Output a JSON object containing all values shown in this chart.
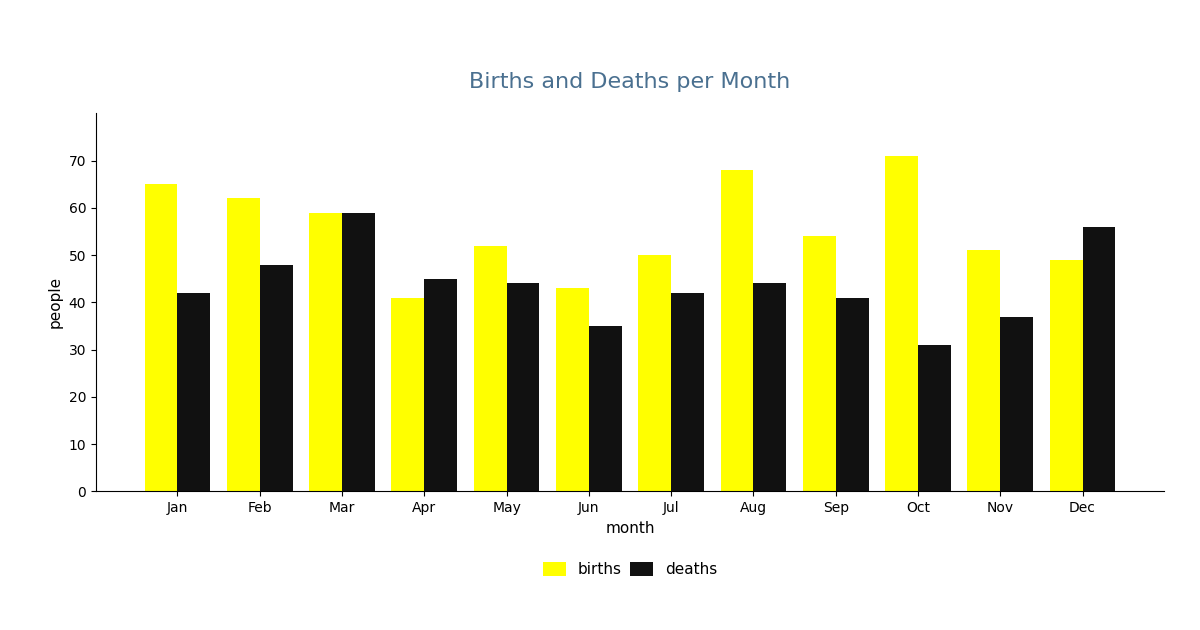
{
  "title": "Births and Deaths per Month",
  "xlabel": "month",
  "ylabel": "people",
  "months": [
    "Jan",
    "Feb",
    "Mar",
    "Apr",
    "May",
    "Jun",
    "Jul",
    "Aug",
    "Sep",
    "Oct",
    "Nov",
    "Dec"
  ],
  "births": [
    65,
    62,
    59,
    41,
    52,
    43,
    50,
    68,
    54,
    71,
    51,
    49
  ],
  "deaths": [
    42,
    48,
    59,
    45,
    44,
    35,
    42,
    44,
    41,
    31,
    37,
    56
  ],
  "births_color": "#ffff00",
  "deaths_color": "#111111",
  "title_color": "#4a7090",
  "ylim": [
    0,
    80
  ],
  "yticks": [
    0,
    10,
    20,
    30,
    40,
    50,
    60,
    70
  ],
  "background_color": "#ffffff",
  "legend_labels": [
    "births",
    "deaths"
  ],
  "bar_width": 0.4,
  "title_fontsize": 16
}
